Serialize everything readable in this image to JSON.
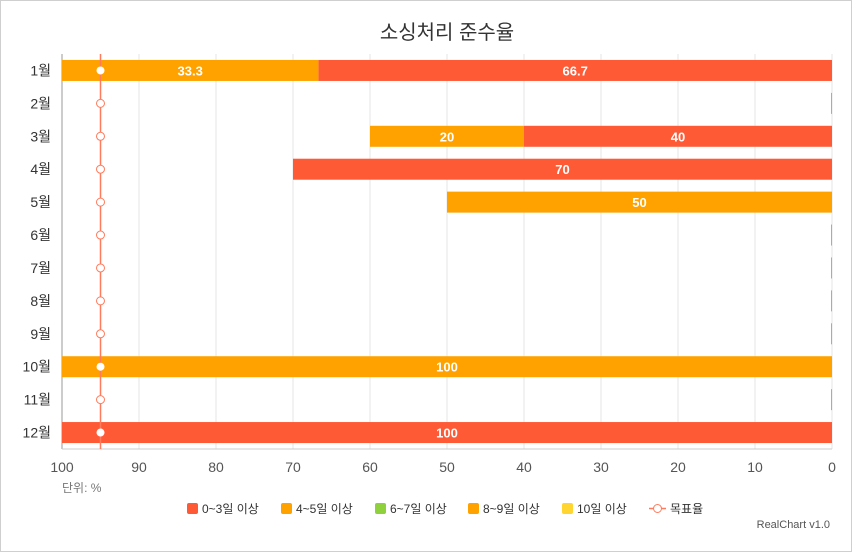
{
  "chart_data": {
    "type": "bar",
    "orientation": "horizontal",
    "stacked": true,
    "title": "소싱처리 준수율",
    "categories": [
      "1월",
      "2월",
      "3월",
      "4월",
      "5월",
      "6월",
      "7월",
      "8월",
      "9월",
      "10월",
      "11월",
      "12월"
    ],
    "series": [
      {
        "name": "0~3일 이상",
        "color": "#ff5a36",
        "values": [
          66.7,
          0,
          40,
          70,
          0,
          0,
          0,
          0,
          0,
          0,
          0,
          100
        ]
      },
      {
        "name": "4~5일 이상",
        "color": "#ffa200",
        "values": [
          0,
          0,
          0,
          0,
          0,
          0,
          0,
          0,
          0,
          0,
          0,
          0
        ]
      },
      {
        "name": "6~7일 이상",
        "color": "#8fd13c",
        "values": [
          0,
          0,
          0,
          0,
          0,
          0,
          0,
          0,
          0,
          0,
          0,
          0
        ]
      },
      {
        "name": "8~9일 이상",
        "color": "#ffa200",
        "values": [
          33.3,
          0,
          20,
          0,
          50,
          0,
          0,
          0,
          0,
          100,
          0,
          0
        ]
      },
      {
        "name": "10일 이상",
        "color": "#ffd631",
        "values": [
          0,
          0,
          0,
          0,
          0,
          0,
          0,
          0,
          0,
          0,
          0,
          0
        ]
      }
    ],
    "target_line": {
      "name": "목표율",
      "color": "#ff7b5c",
      "values": [
        95,
        95,
        95,
        95,
        95,
        95,
        95,
        95,
        95,
        95,
        95,
        95
      ]
    },
    "xlim": [
      100,
      0
    ],
    "xticks": [
      "100",
      "90",
      "80",
      "70",
      "60",
      "50",
      "40",
      "30",
      "20",
      "10",
      "0"
    ],
    "unit_label": "단위: %",
    "grid": true,
    "legend_position": "bottom",
    "credit": "RealChart v1.0"
  }
}
